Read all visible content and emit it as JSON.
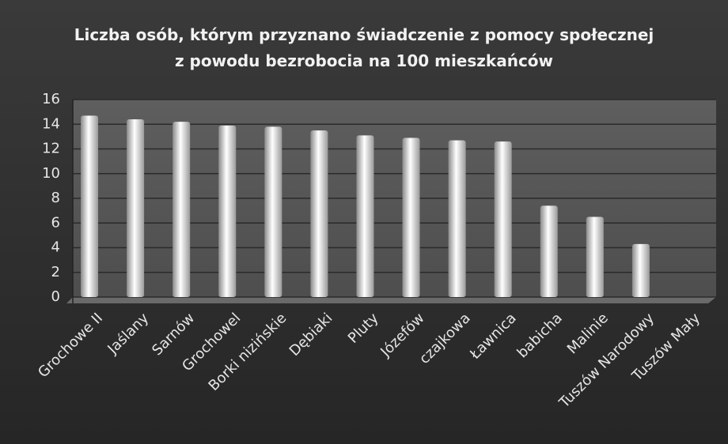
{
  "chart_data": {
    "type": "bar",
    "title": "Liczba osób, którym przyznano świadczenie z pomocy społecznej z powodu bezrobocia na 100 mieszkańców",
    "categories": [
      "Grochowe II",
      "Jaślany",
      "Sarnów",
      "Grochowel",
      "Borki nizińskie",
      "Dębiaki",
      "Pluty",
      "Józefów",
      "czajkowa",
      "Ławnica",
      "babicha",
      "Malinie",
      "Tuszów Narodowy",
      "Tuszów Mały"
    ],
    "values": [
      14.7,
      14.4,
      14.2,
      13.9,
      13.8,
      13.5,
      13.1,
      12.9,
      12.7,
      12.6,
      7.4,
      6.5,
      4.3,
      0
    ],
    "color": "#ffffff",
    "ylim": [
      0,
      16
    ],
    "yticks": [
      0,
      2,
      4,
      6,
      8,
      10,
      12,
      14,
      16
    ],
    "grid": true
  }
}
